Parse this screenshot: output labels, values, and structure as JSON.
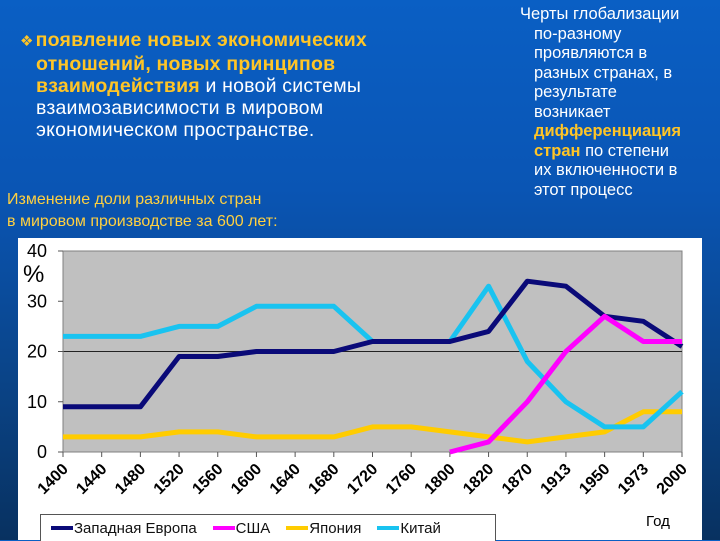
{
  "bullet": {
    "icon": "diamond-bullet-icon",
    "highlight_lines": [
      "появление новых экономических",
      "отношений, новых принципов",
      "взаимодействия"
    ],
    "rest_line3": " и новой системы",
    "plain_lines": [
      "взаимозависимости в мировом",
      "экономическом пространстве."
    ]
  },
  "side_note": {
    "lines_before": [
      "Черты глобализации",
      "по-разному",
      "проявляются в",
      "разных странах, в",
      "результате",
      "возникает"
    ],
    "highlight_1": "дифференциация",
    "highlight_2": "стран",
    "after_highlight_2": " по степени",
    "lines_after": [
      "их включенности в",
      "этот процесс"
    ]
  },
  "caption": {
    "lines": [
      "Изменение доли различных стран",
      "в мировом производстве за 600 лет:"
    ]
  },
  "chart_data": {
    "type": "line",
    "title": "Изменение доли различных стран в мировом производстве за 600 лет",
    "xlabel": "Год",
    "ylabel": "%",
    "ylim": [
      0,
      40
    ],
    "yticks": [
      0,
      10,
      20,
      30,
      40
    ],
    "grid": "single gridline at 20",
    "legend_position": "bottom",
    "categories": [
      "1400",
      "1440",
      "1480",
      "1520",
      "1560",
      "1600",
      "1640",
      "1680",
      "1720",
      "1760",
      "1800",
      "1820",
      "1870",
      "1913",
      "1950",
      "1973",
      "2000"
    ],
    "series": [
      {
        "name": "Западная Европа",
        "color": "#0a0a78",
        "values": [
          9,
          9,
          9,
          19,
          19,
          20,
          20,
          20,
          22,
          22,
          22,
          24,
          34,
          33,
          27,
          26,
          21
        ]
      },
      {
        "name": "США",
        "color": "#ff00ff",
        "values": [
          null,
          null,
          null,
          null,
          null,
          null,
          null,
          null,
          null,
          null,
          0,
          2,
          10,
          20,
          27,
          22,
          22
        ]
      },
      {
        "name": "Япония",
        "color": "#ffcc00",
        "values": [
          3,
          3,
          3,
          4,
          4,
          3,
          3,
          3,
          5,
          5,
          4,
          3,
          2,
          3,
          4,
          8,
          8
        ]
      },
      {
        "name": "Китай",
        "color": "#19c3f0",
        "values": [
          23,
          23,
          23,
          25,
          25,
          29,
          29,
          29,
          22,
          22,
          22,
          33,
          18,
          10,
          5,
          5,
          12
        ]
      }
    ]
  }
}
